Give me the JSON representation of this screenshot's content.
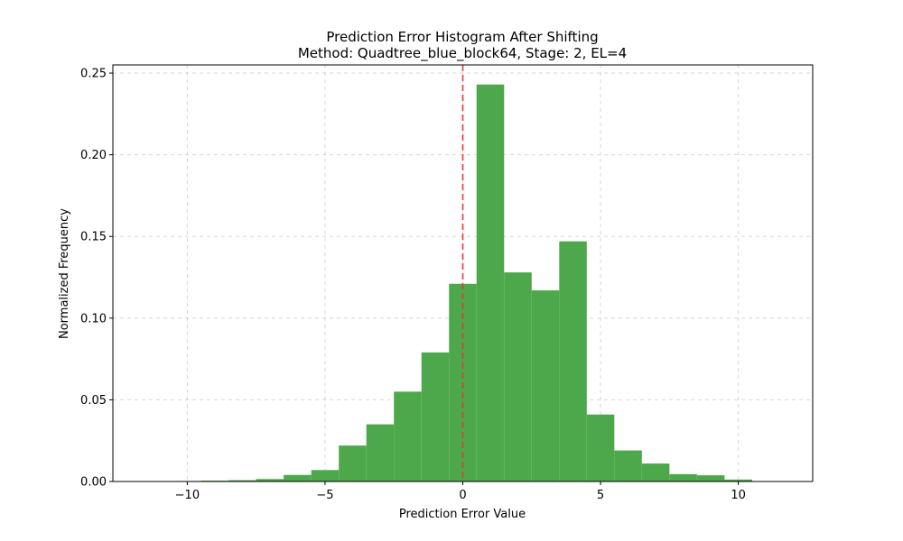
{
  "chart_data": {
    "type": "bar",
    "title": "Prediction Error Histogram After Shifting",
    "subtitle": "Method: Quadtree_blue_block64, Stage: 2, EL=4",
    "xlabel": "Prediction Error Value",
    "ylabel": "Normalized Frequency",
    "xlim": [
      -12.7,
      12.7
    ],
    "ylim": [
      0,
      0.255
    ],
    "xticks": [
      -10,
      -5,
      0,
      5,
      10
    ],
    "xtick_labels": [
      "−10",
      "−5",
      "0",
      "5",
      "10"
    ],
    "yticks": [
      0,
      0.05,
      0.1,
      0.15,
      0.2,
      0.25
    ],
    "ytick_labels": [
      "0.00",
      "0.05",
      "0.10",
      "0.15",
      "0.20",
      "0.25"
    ],
    "grid": true,
    "bar_color": "#4da84b",
    "threshold_line": {
      "x": 0,
      "color": "#e03a3a"
    },
    "bins": [
      {
        "x0": -11.5,
        "x1": -10.5,
        "value": 0.0
      },
      {
        "x0": -10.5,
        "x1": -9.5,
        "value": 0.0003
      },
      {
        "x0": -9.5,
        "x1": -8.5,
        "value": 0.0005
      },
      {
        "x0": -8.5,
        "x1": -7.5,
        "value": 0.0008
      },
      {
        "x0": -7.5,
        "x1": -6.5,
        "value": 0.0015
      },
      {
        "x0": -6.5,
        "x1": -5.5,
        "value": 0.004
      },
      {
        "x0": -5.5,
        "x1": -4.5,
        "value": 0.007
      },
      {
        "x0": -4.5,
        "x1": -3.5,
        "value": 0.022
      },
      {
        "x0": -3.5,
        "x1": -2.5,
        "value": 0.035
      },
      {
        "x0": -2.5,
        "x1": -1.5,
        "value": 0.055
      },
      {
        "x0": -1.5,
        "x1": -0.5,
        "value": 0.079
      },
      {
        "x0": -0.5,
        "x1": 0.5,
        "value": 0.121
      },
      {
        "x0": 0.5,
        "x1": 1.5,
        "value": 0.243
      },
      {
        "x0": 1.5,
        "x1": 2.5,
        "value": 0.128
      },
      {
        "x0": 2.5,
        "x1": 3.5,
        "value": 0.117
      },
      {
        "x0": 3.5,
        "x1": 4.5,
        "value": 0.147
      },
      {
        "x0": 4.5,
        "x1": 5.5,
        "value": 0.041
      },
      {
        "x0": 5.5,
        "x1": 6.5,
        "value": 0.019
      },
      {
        "x0": 6.5,
        "x1": 7.5,
        "value": 0.011
      },
      {
        "x0": 7.5,
        "x1": 8.5,
        "value": 0.0045
      },
      {
        "x0": 8.5,
        "x1": 9.5,
        "value": 0.0038
      },
      {
        "x0": 9.5,
        "x1": 10.5,
        "value": 0.0012
      },
      {
        "x0": 10.5,
        "x1": 11.5,
        "value": 0.0
      }
    ]
  }
}
